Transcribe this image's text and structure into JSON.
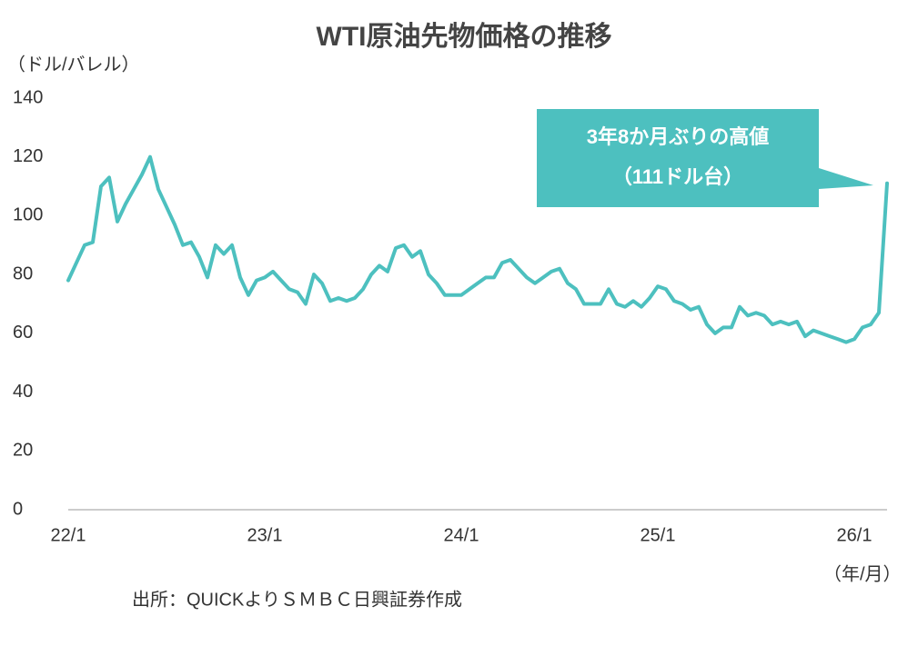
{
  "chart_data": {
    "type": "line",
    "title": "WTI原油先物価格の推移",
    "y_axis_label": "（ドル/バレル）",
    "x_axis_label": "（年/月）",
    "source": "出所：QUICKよりＳＭＢＣ日興証券作成",
    "annotation": [
      "3年8か月ぶりの高値",
      "（111ドル台）"
    ],
    "annotation_color": "#4dc0bf",
    "color": "#4dc0bf",
    "categories": [
      "22/1",
      null,
      null,
      null,
      null,
      null,
      null,
      null,
      null,
      null,
      null,
      null,
      null,
      null,
      null,
      null,
      null,
      null,
      null,
      null,
      null,
      null,
      null,
      null,
      "23/1",
      null,
      null,
      null,
      null,
      null,
      null,
      null,
      null,
      null,
      null,
      null,
      null,
      null,
      null,
      null,
      null,
      null,
      null,
      null,
      null,
      null,
      null,
      null,
      "24/1",
      null,
      null,
      null,
      null,
      null,
      null,
      null,
      null,
      null,
      null,
      null,
      null,
      null,
      null,
      null,
      null,
      null,
      null,
      null,
      null,
      null,
      null,
      null,
      "25/1",
      null,
      null,
      null,
      null,
      null,
      null,
      null,
      null,
      null,
      null,
      null,
      null,
      null,
      null,
      null,
      null,
      null,
      null,
      null,
      null,
      null,
      null,
      null,
      "26/1",
      null,
      null,
      null,
      null
    ],
    "values": [
      78,
      84,
      90,
      91,
      110,
      113,
      98,
      104,
      109,
      114,
      120,
      109,
      103,
      97,
      90,
      91,
      86,
      79,
      90,
      87,
      90,
      79,
      73,
      78,
      79,
      81,
      78,
      75,
      74,
      70,
      80,
      77,
      71,
      72,
      71,
      72,
      75,
      80,
      83,
      81,
      89,
      90,
      86,
      88,
      80,
      77,
      73,
      73,
      73,
      75,
      77,
      79,
      79,
      84,
      85,
      82,
      79,
      77,
      79,
      81,
      82,
      77,
      75,
      70,
      70,
      70,
      75,
      70,
      69,
      71,
      69,
      72,
      76,
      75,
      71,
      70,
      68,
      69,
      63,
      60,
      62,
      62,
      69,
      66,
      67,
      66,
      63,
      64,
      63,
      64,
      59,
      61,
      60,
      59,
      58,
      57,
      58,
      62,
      63,
      67,
      111
    ],
    "ylim": [
      0,
      140
    ],
    "yticks": [
      0,
      20,
      40,
      60,
      80,
      100,
      120,
      140
    ],
    "grid": false
  }
}
